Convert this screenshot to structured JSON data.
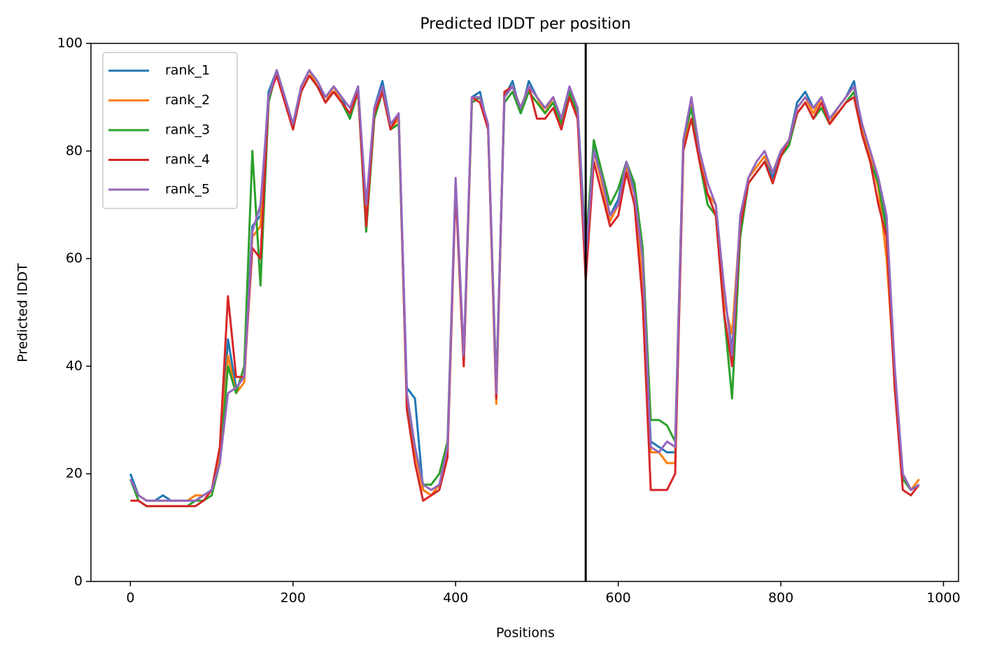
{
  "chart_data": {
    "type": "line",
    "title": "Predicted lDDT per position",
    "xlabel": "Positions",
    "ylabel": "Predicted lDDT",
    "x": [
      0,
      10,
      20,
      30,
      40,
      50,
      60,
      70,
      80,
      90,
      100,
      110,
      120,
      130,
      140,
      150,
      160,
      170,
      180,
      190,
      200,
      210,
      220,
      230,
      240,
      250,
      260,
      270,
      280,
      290,
      300,
      310,
      320,
      330,
      340,
      350,
      360,
      370,
      380,
      390,
      400,
      410,
      420,
      430,
      440,
      450,
      460,
      470,
      480,
      490,
      500,
      510,
      520,
      530,
      540,
      550,
      560,
      570,
      580,
      590,
      600,
      610,
      620,
      630,
      640,
      650,
      660,
      670,
      680,
      690,
      700,
      710,
      720,
      730,
      740,
      750,
      760,
      770,
      780,
      790,
      800,
      810,
      820,
      830,
      840,
      850,
      860,
      870,
      880,
      890,
      900,
      910,
      920,
      930,
      940,
      950,
      960,
      970
    ],
    "series": [
      {
        "name": "rank_1",
        "color": "#1f77b4",
        "values": [
          20,
          16,
          15,
          15,
          16,
          15,
          15,
          15,
          15,
          16,
          17,
          23,
          45,
          36,
          38,
          66,
          68,
          91,
          95,
          90,
          85,
          92,
          95,
          92,
          90,
          92,
          90,
          86,
          92,
          68,
          88,
          93,
          85,
          86,
          36,
          34,
          17,
          16,
          18,
          24,
          74,
          41,
          90,
          91,
          84,
          36,
          90,
          93,
          87,
          93,
          90,
          88,
          90,
          86,
          91,
          88,
          62,
          82,
          74,
          68,
          71,
          78,
          73,
          60,
          26,
          25,
          24,
          24,
          80,
          90,
          79,
          72,
          70,
          54,
          43,
          66,
          75,
          77,
          79,
          75,
          80,
          82,
          89,
          91,
          88,
          90,
          86,
          88,
          90,
          93,
          84,
          80,
          74,
          66,
          38,
          20,
          17,
          18
        ]
      },
      {
        "name": "rank_2",
        "color": "#ff7f0e",
        "values": [
          19,
          16,
          15,
          15,
          15,
          15,
          15,
          15,
          16,
          16,
          17,
          23,
          42,
          35,
          37,
          64,
          66,
          90,
          95,
          90,
          84,
          92,
          95,
          92,
          89,
          92,
          89,
          87,
          91,
          67,
          87,
          92,
          84,
          86,
          33,
          24,
          17,
          16,
          18,
          24,
          74,
          40,
          89,
          90,
          84,
          33,
          90,
          92,
          88,
          92,
          90,
          87,
          90,
          85,
          91,
          87,
          58,
          80,
          74,
          67,
          70,
          77,
          72,
          55,
          24,
          24,
          22,
          22,
          80,
          89,
          79,
          72,
          70,
          52,
          46,
          67,
          75,
          77,
          79,
          76,
          80,
          82,
          88,
          90,
          87,
          90,
          85,
          88,
          90,
          92,
          84,
          79,
          73,
          60,
          38,
          19,
          17,
          19
        ]
      },
      {
        "name": "rank_3",
        "color": "#2ca02c",
        "values": [
          19,
          15,
          14,
          14,
          14,
          14,
          14,
          14,
          15,
          15,
          16,
          22,
          40,
          35,
          40,
          80,
          55,
          89,
          95,
          90,
          84,
          91,
          94,
          92,
          89,
          91,
          89,
          86,
          91,
          65,
          86,
          91,
          84,
          85,
          34,
          25,
          18,
          18,
          20,
          26,
          74,
          41,
          89,
          90,
          84,
          36,
          89,
          91,
          87,
          91,
          89,
          87,
          89,
          85,
          91,
          87,
          62,
          82,
          76,
          70,
          73,
          78,
          74,
          62,
          30,
          30,
          29,
          26,
          82,
          88,
          78,
          70,
          68,
          50,
          34,
          64,
          74,
          76,
          78,
          74,
          79,
          81,
          87,
          89,
          86,
          88,
          85,
          87,
          89,
          91,
          83,
          78,
          74,
          65,
          36,
          19,
          17,
          18
        ]
      },
      {
        "name": "rank_4",
        "color": "#d62728",
        "values": [
          15,
          15,
          14,
          14,
          14,
          14,
          14,
          14,
          14,
          15,
          17,
          25,
          53,
          38,
          38,
          62,
          60,
          90,
          94,
          89,
          84,
          91,
          94,
          92,
          89,
          91,
          89,
          87,
          91,
          66,
          87,
          91,
          84,
          87,
          32,
          22,
          15,
          16,
          17,
          23,
          73,
          40,
          90,
          89,
          84,
          34,
          91,
          92,
          88,
          92,
          86,
          86,
          88,
          84,
          90,
          86,
          56,
          78,
          72,
          66,
          68,
          76,
          70,
          52,
          17,
          17,
          17,
          20,
          80,
          86,
          78,
          72,
          68,
          50,
          40,
          66,
          74,
          76,
          78,
          74,
          79,
          82,
          87,
          89,
          86,
          89,
          85,
          87,
          89,
          90,
          83,
          78,
          70,
          64,
          36,
          17,
          16,
          18
        ]
      },
      {
        "name": "rank_5",
        "color": "#9467bd",
        "values": [
          19,
          16,
          15,
          15,
          15,
          15,
          15,
          15,
          15,
          16,
          17,
          22,
          35,
          36,
          38,
          65,
          70,
          90,
          95,
          90,
          85,
          92,
          95,
          93,
          90,
          92,
          90,
          88,
          92,
          70,
          88,
          92,
          85,
          87,
          35,
          25,
          18,
          17,
          18,
          25,
          75,
          42,
          90,
          90,
          85,
          35,
          90,
          92,
          88,
          92,
          90,
          88,
          90,
          86,
          92,
          88,
          60,
          80,
          75,
          68,
          70,
          78,
          72,
          60,
          25,
          24,
          26,
          25,
          82,
          90,
          80,
          74,
          70,
          55,
          42,
          68,
          75,
          78,
          80,
          76,
          80,
          82,
          88,
          90,
          88,
          90,
          86,
          88,
          90,
          92,
          85,
          80,
          75,
          68,
          40,
          20,
          17,
          18
        ]
      }
    ],
    "vlines": [
      560
    ],
    "vline_color": "#000000",
    "xlim": [
      -48.5,
      1018.5
    ],
    "xticks": [
      0,
      200,
      400,
      600,
      800,
      1000
    ],
    "ylim": [
      0,
      100
    ],
    "yticks": [
      0,
      20,
      40,
      60,
      80,
      100
    ],
    "legend": "upper left"
  }
}
